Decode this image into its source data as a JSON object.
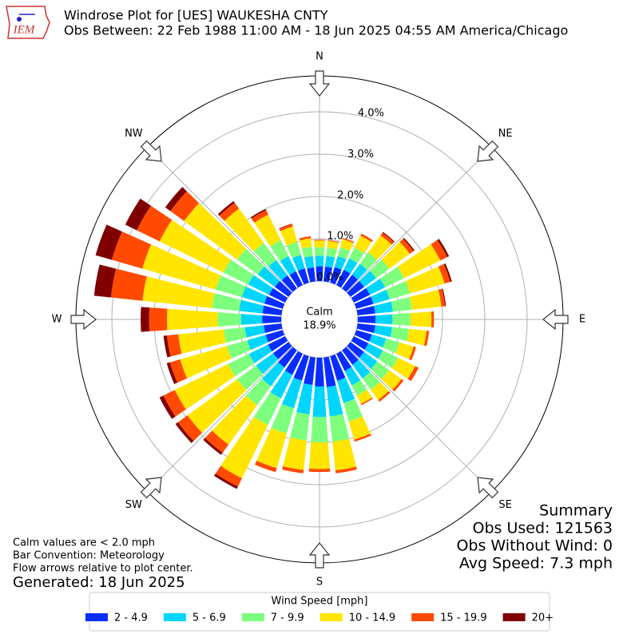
{
  "logo": "IEM",
  "chart_data": {
    "type": "windrose",
    "title": "Windrose Plot for [UES] WAUKESHA CNTY",
    "subtitle": "Obs Between: 22 Feb 1988 11:00 AM - 18 Jun 2025 04:55 AM America/Chicago",
    "compass": [
      "N",
      "NE",
      "E",
      "SE",
      "S",
      "SW",
      "W",
      "NW"
    ],
    "calm_label": "Calm",
    "calm_value": "18.9%",
    "x": [
      0,
      10,
      20,
      30,
      40,
      50,
      60,
      70,
      80,
      90,
      100,
      110,
      120,
      130,
      140,
      150,
      160,
      170,
      180,
      190,
      200,
      210,
      220,
      230,
      240,
      250,
      260,
      270,
      280,
      290,
      300,
      310,
      320,
      330,
      340,
      350
    ],
    "ylim": [
      0,
      4.85
    ],
    "yticks": [
      {
        "value": 0,
        "label": "0.0%"
      },
      {
        "value": 1,
        "label": "1.0%"
      },
      {
        "value": 2,
        "label": "2.0%"
      },
      {
        "value": 3,
        "label": "3.0%"
      },
      {
        "value": 4,
        "label": "4.0%"
      }
    ],
    "grid": true,
    "legend_title": "Wind Speed [mph]",
    "series": [
      {
        "name": "2 - 4.9",
        "color": "#0a2dff",
        "values": [
          0.35,
          0.35,
          0.38,
          0.4,
          0.4,
          0.4,
          0.42,
          0.42,
          0.42,
          0.42,
          0.42,
          0.38,
          0.38,
          0.4,
          0.42,
          0.45,
          0.6,
          0.7,
          0.68,
          0.65,
          0.6,
          0.55,
          0.5,
          0.45,
          0.45,
          0.42,
          0.42,
          0.45,
          0.45,
          0.45,
          0.42,
          0.4,
          0.38,
          0.36,
          0.35,
          0.33
        ]
      },
      {
        "name": "5 - 6.9",
        "color": "#00d5ff",
        "values": [
          0.25,
          0.25,
          0.27,
          0.3,
          0.32,
          0.35,
          0.4,
          0.4,
          0.42,
          0.4,
          0.4,
          0.35,
          0.38,
          0.38,
          0.4,
          0.38,
          0.55,
          0.7,
          0.72,
          0.7,
          0.68,
          0.62,
          0.55,
          0.5,
          0.5,
          0.45,
          0.45,
          0.5,
          0.55,
          0.55,
          0.55,
          0.5,
          0.45,
          0.4,
          0.33,
          0.27
        ]
      },
      {
        "name": "7 - 9.9",
        "color": "#7dff7d",
        "values": [
          0.2,
          0.2,
          0.22,
          0.28,
          0.33,
          0.38,
          0.5,
          0.5,
          0.45,
          0.42,
          0.4,
          0.33,
          0.4,
          0.35,
          0.33,
          0.27,
          0.45,
          0.6,
          0.6,
          0.62,
          0.62,
          0.7,
          0.55,
          0.55,
          0.55,
          0.5,
          0.5,
          0.55,
          0.65,
          0.65,
          0.65,
          0.6,
          0.5,
          0.42,
          0.32,
          0.22
        ]
      },
      {
        "name": "10 - 14.9",
        "color": "#ffe500",
        "values": [
          0.16,
          0.16,
          0.2,
          0.32,
          0.5,
          0.6,
          0.95,
          0.85,
          0.7,
          0.5,
          0.42,
          0.35,
          0.45,
          0.36,
          0.3,
          0.22,
          0.45,
          0.68,
          0.63,
          0.7,
          0.85,
          1.4,
          1.15,
          1.45,
          1.4,
          1.15,
          1.08,
          1.2,
          1.65,
          1.8,
          1.68,
          1.55,
          1.0,
          0.67,
          0.38,
          0.2
        ]
      },
      {
        "name": "15 - 19.9",
        "color": "#ff4a00",
        "values": [
          0.02,
          0.02,
          0.03,
          0.05,
          0.08,
          0.11,
          0.18,
          0.14,
          0.09,
          0.06,
          0.06,
          0.06,
          0.09,
          0.06,
          0.05,
          0.03,
          0.05,
          0.07,
          0.07,
          0.08,
          0.1,
          0.22,
          0.24,
          0.28,
          0.3,
          0.25,
          0.27,
          0.42,
          0.75,
          0.75,
          0.6,
          0.4,
          0.17,
          0.12,
          0.06,
          0.05
        ]
      },
      {
        "name": "20+",
        "color": "#800000",
        "values": [
          0,
          0,
          0,
          0,
          0.02,
          0.03,
          0.05,
          0.04,
          0.02,
          0,
          0,
          0,
          0,
          0,
          0,
          0,
          0,
          0,
          0,
          0,
          0,
          0.06,
          0.06,
          0.07,
          0.1,
          0.08,
          0.08,
          0.2,
          0.4,
          0.4,
          0.3,
          0.15,
          0.05,
          0.03,
          0.01,
          0
        ]
      }
    ],
    "summary": [
      "Summary",
      "Obs Used: 121563",
      "Obs Without Wind: 0",
      "Avg Speed: 7.3 mph"
    ],
    "notes": [
      "Calm values are < 2.0 mph",
      "Bar Convention: Meteorology",
      "Flow arrows relative to plot center."
    ],
    "generated": "Generated: 18 Jun 2025"
  }
}
